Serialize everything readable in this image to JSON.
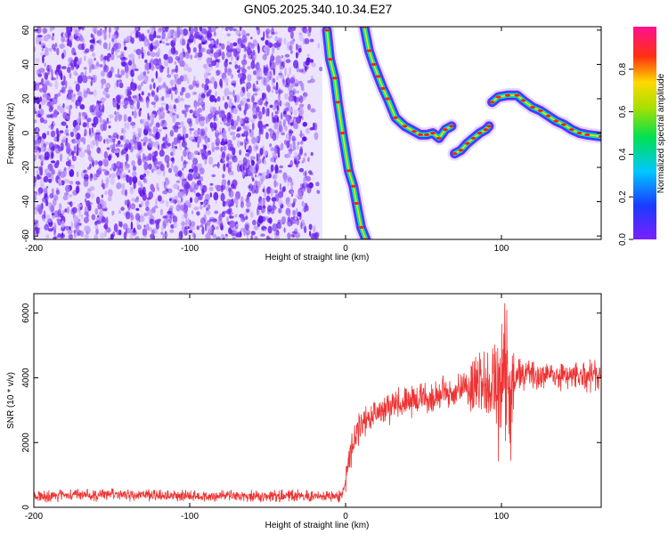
{
  "title": "GN05.2025.340.10.34.E27",
  "colors": {
    "snr_line": "#ee3333",
    "frame": "#000000"
  },
  "chart_data": [
    {
      "type": "heatmap",
      "name": "spectrogram",
      "xlabel": "Height of straight line (km)",
      "ylabel": "Frequency (Hz)",
      "xlim": [
        -200,
        164
      ],
      "ylim": [
        -62,
        62
      ],
      "xticks": [
        "-200",
        "-100",
        "0",
        "100"
      ],
      "yticks": [
        "60",
        "40",
        "20",
        "0",
        "-20",
        "-40",
        "-60"
      ],
      "colormap": "rainbow (violet-blue-cyan-green-yellow-red-magenta)",
      "noise_region_x": [
        -200,
        -15
      ],
      "signal_tracks": [
        {
          "name": "descending",
          "points": [
            [
              -12,
              60
            ],
            [
              -10,
              43
            ],
            [
              -7,
              32
            ],
            [
              -5,
              18
            ],
            [
              -2,
              0
            ],
            [
              2,
              -22
            ],
            [
              5,
              -31
            ],
            [
              7,
              -41
            ],
            [
              10,
              -55
            ],
            [
              13,
              -62
            ]
          ]
        },
        {
          "name": "upper",
          "points": [
            [
              12,
              62
            ],
            [
              15,
              48
            ],
            [
              18,
              40
            ],
            [
              21,
              33
            ],
            [
              24,
              26
            ],
            [
              27,
              20
            ],
            [
              32,
              9
            ],
            [
              38,
              4
            ],
            [
              44,
              1
            ],
            [
              48,
              -1
            ],
            [
              52,
              -1
            ],
            [
              56,
              0
            ],
            [
              60,
              -3
            ],
            [
              64,
              2
            ],
            [
              68,
              4
            ]
          ]
        },
        {
          "name": "middle",
          "points": [
            [
              70,
              -12
            ],
            [
              74,
              -10
            ],
            [
              78,
              -6
            ],
            [
              82,
              -3
            ],
            [
              86,
              0
            ],
            [
              90,
              2
            ],
            [
              92,
              4
            ]
          ]
        },
        {
          "name": "right",
          "points": [
            [
              94,
              18
            ],
            [
              98,
              21
            ],
            [
              104,
              22
            ],
            [
              110,
              22
            ],
            [
              114,
              19
            ],
            [
              120,
              15
            ],
            [
              125,
              13
            ],
            [
              130,
              10
            ],
            [
              135,
              7
            ],
            [
              140,
              5
            ],
            [
              145,
              2
            ],
            [
              150,
              0
            ],
            [
              155,
              -1
            ],
            [
              164,
              -2
            ]
          ]
        }
      ],
      "colorbar": {
        "label": "Normalized spectral amplitude",
        "ticks": [
          "0.0",
          "0.2",
          "0.4",
          "0.6",
          "0.8"
        ],
        "range": [
          0,
          1
        ]
      }
    },
    {
      "type": "line",
      "name": "snr",
      "xlabel": "Height of straight line (km)",
      "ylabel": "SNR (10 * v/v)",
      "xlim": [
        -200,
        164
      ],
      "ylim": [
        0,
        6600
      ],
      "xticks": [
        "-200",
        "-100",
        "0",
        "100"
      ],
      "yticks": [
        "0",
        "2000",
        "4000",
        "6000"
      ],
      "series": [
        {
          "color": "#ee3333",
          "x": [
            -200,
            -150,
            -100,
            -50,
            -2,
            2,
            10,
            20,
            40,
            60,
            80,
            90,
            95,
            100,
            105,
            110,
            130,
            164
          ],
          "y": [
            350,
            400,
            350,
            350,
            350,
            1500,
            2600,
            3000,
            3300,
            3500,
            3700,
            3800,
            3800,
            4000,
            3500,
            4100,
            4100,
            4000
          ]
        }
      ]
    }
  ]
}
